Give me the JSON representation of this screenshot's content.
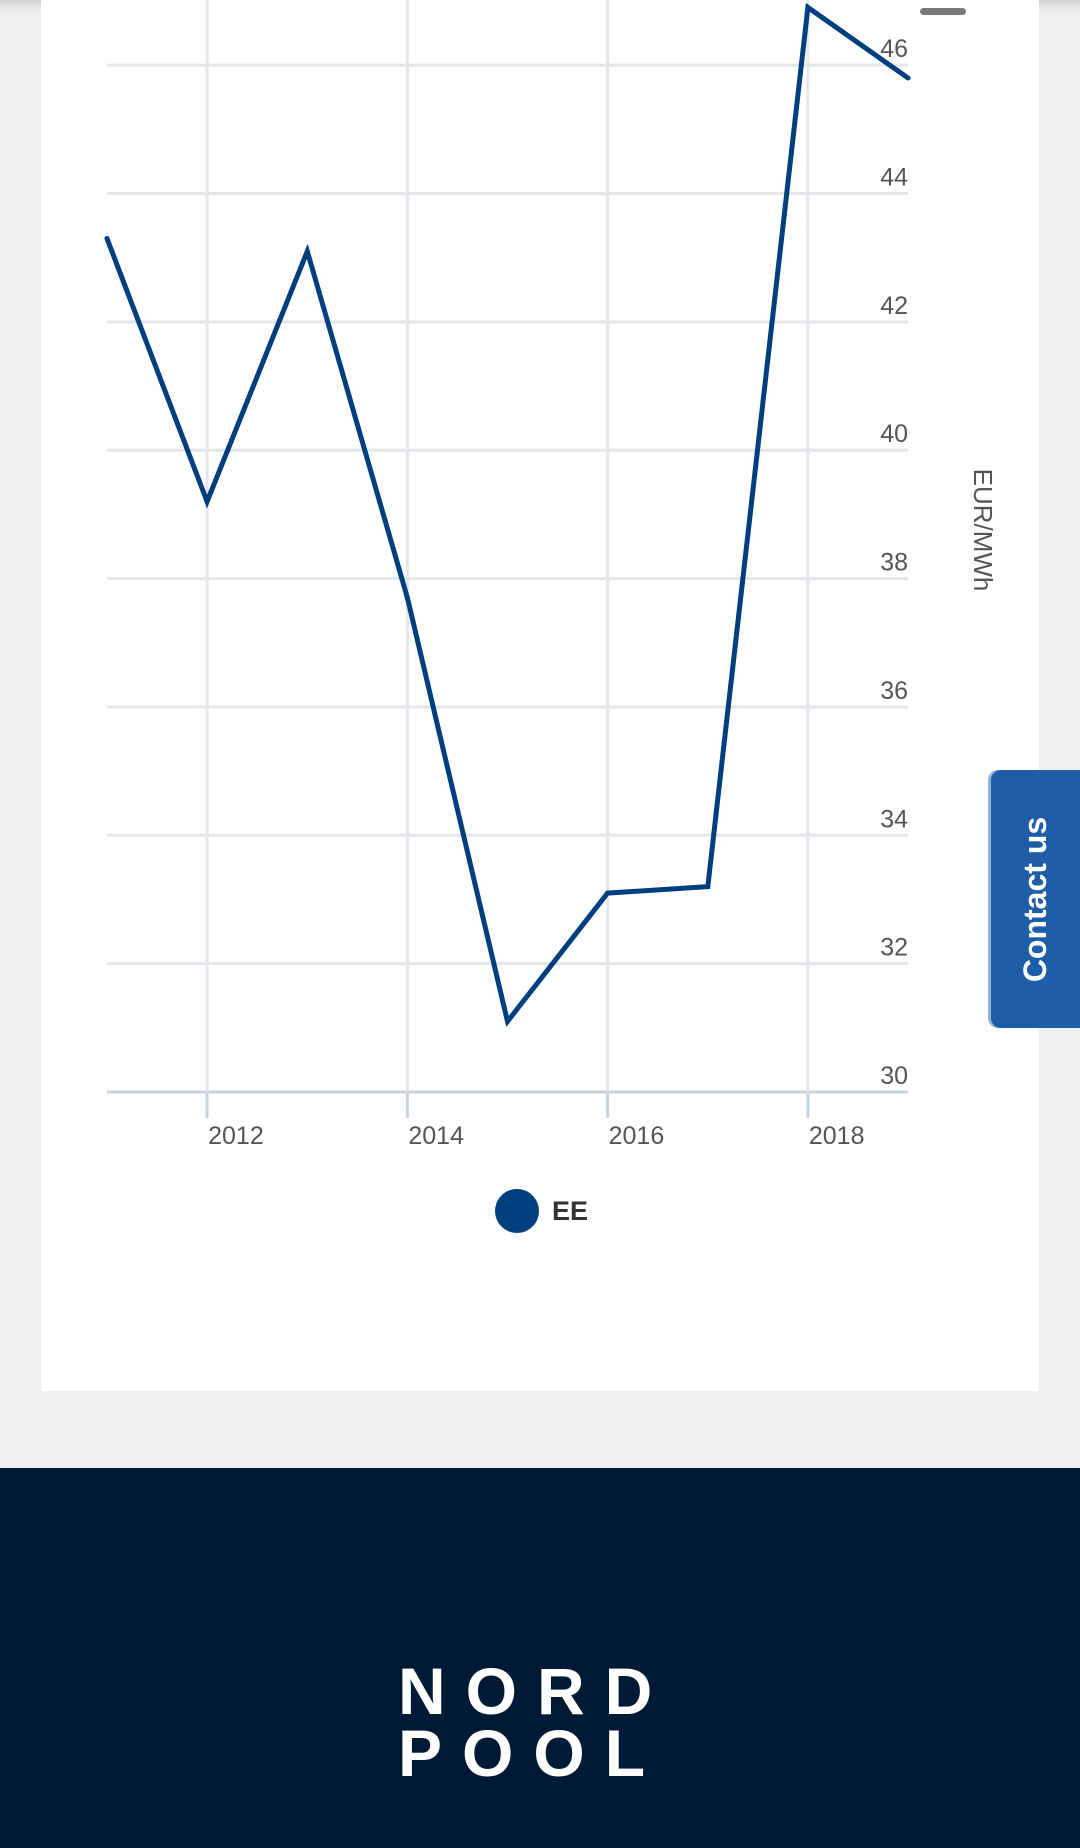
{
  "chart_data": {
    "type": "line",
    "x": [
      2011,
      2012,
      2013,
      2014,
      2015,
      2016,
      2017,
      2018,
      2019
    ],
    "series": [
      {
        "name": "EE",
        "values": [
          43.3,
          39.2,
          43.1,
          37.7,
          31.1,
          33.1,
          33.2,
          46.9,
          45.8
        ]
      }
    ],
    "title": "",
    "xlabel": "",
    "ylabel": "EUR/MWh",
    "x_tick_labels": [
      "2012",
      "2014",
      "2016",
      "2018"
    ],
    "y_ticks": [
      30,
      32,
      34,
      36,
      38,
      40,
      42,
      44,
      46
    ],
    "ylim": [
      30,
      47
    ],
    "grid": true,
    "legend": "bottom-center",
    "series_color": "#003f7d"
  },
  "contact": {
    "label": "Contact us"
  },
  "footer": {
    "logo_line1": "NORD",
    "logo_line2": "POOL"
  }
}
